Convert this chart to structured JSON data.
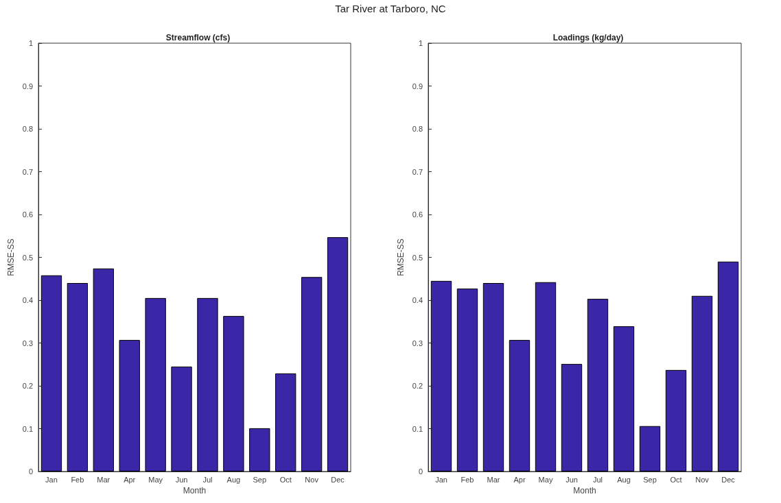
{
  "chart_data": [
    {
      "type": "bar",
      "title": "Streamflow (cfs)",
      "xlabel": "Month",
      "ylabel": "RMSE-SS",
      "annotations": [
        "Tar River at Tarboro, NC"
      ],
      "categories": [
        "Jan",
        "Feb",
        "Mar",
        "Apr",
        "May",
        "Jun",
        "Jul",
        "Aug",
        "Sep",
        "Oct",
        "Nov",
        "Dec"
      ],
      "values": [
        0.458,
        0.44,
        0.474,
        0.307,
        0.405,
        0.245,
        0.405,
        0.363,
        0.101,
        0.229,
        0.454,
        0.547
      ],
      "color": "#3a27a8",
      "ylim": [
        0,
        1
      ],
      "yticks": [
        0,
        0.1,
        0.2,
        0.3,
        0.4,
        0.5,
        0.6,
        0.7,
        0.8,
        0.9,
        1
      ],
      "grid": false
    },
    {
      "type": "bar",
      "title": "Loadings (kg/day)",
      "xlabel": "Month",
      "ylabel": "RMSE-SS",
      "categories": [
        "Jan",
        "Feb",
        "Mar",
        "Apr",
        "May",
        "Jun",
        "Jul",
        "Aug",
        "Sep",
        "Oct",
        "Nov",
        "Dec"
      ],
      "values": [
        0.445,
        0.427,
        0.44,
        0.307,
        0.442,
        0.251,
        0.403,
        0.339,
        0.106,
        0.237,
        0.41,
        0.49
      ],
      "color": "#3a27a8",
      "ylim": [
        0,
        1
      ],
      "yticks": [
        0,
        0.1,
        0.2,
        0.3,
        0.4,
        0.5,
        0.6,
        0.7,
        0.8,
        0.9,
        1
      ],
      "grid": false
    }
  ]
}
